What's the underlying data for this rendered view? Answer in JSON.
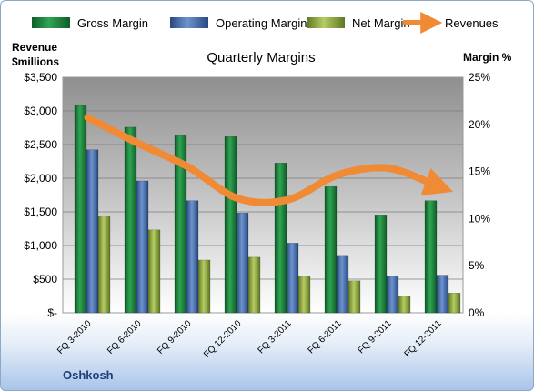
{
  "chart_data": {
    "type": "bar",
    "title": "Quarterly Margins",
    "categories": [
      "FQ 3-2010",
      "FQ 6-2010",
      "FQ 9-2010",
      "FQ 12-2010",
      "FQ 3-2011",
      "FQ 6-2011",
      "FQ 9-2011",
      "FQ 12-2011"
    ],
    "series": [
      {
        "name": "Gross Margin",
        "axis": "right",
        "color": "#1e7a3c",
        "values": [
          22.0,
          19.7,
          18.8,
          18.7,
          15.9,
          13.4,
          10.4,
          11.9
        ]
      },
      {
        "name": "Operating Margin",
        "axis": "right",
        "color": "#3f68a8",
        "values": [
          17.3,
          14.0,
          11.9,
          10.6,
          7.4,
          6.1,
          3.9,
          4.0
        ]
      },
      {
        "name": "Net Margin",
        "axis": "right",
        "color": "#8faa3c",
        "values": [
          10.3,
          8.8,
          5.6,
          5.9,
          3.9,
          3.4,
          1.8,
          2.1
        ]
      }
    ],
    "revenues": {
      "name": "Revenues",
      "type": "line",
      "axis": "left",
      "color": "#f08a35",
      "values": [
        2900,
        2520,
        2170,
        1700,
        1680,
        2050,
        2150,
        1880
      ]
    },
    "ylabel_left": "Revenue\n$millions",
    "ylabel_right": "Margin %",
    "yticks_left": [
      "$3,500",
      "$3,000",
      "$2,500",
      "$2,000",
      "$1,500",
      "$1,000",
      "$500",
      "$-"
    ],
    "yticks_right": [
      "25%",
      "20%",
      "15%",
      "10%",
      "5%",
      "0%"
    ],
    "ylim_left": [
      0,
      3500
    ],
    "ylim_right": [
      0,
      25
    ],
    "grid": true,
    "legend_position": "top"
  },
  "footer": {
    "company": "Oshkosh"
  }
}
